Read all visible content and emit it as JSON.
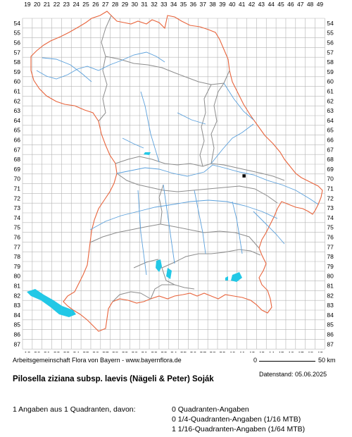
{
  "map": {
    "x_labels": [
      "19",
      "20",
      "21",
      "22",
      "23",
      "24",
      "25",
      "26",
      "27",
      "28",
      "29",
      "30",
      "31",
      "32",
      "33",
      "34",
      "35",
      "36",
      "37",
      "38",
      "39",
      "40",
      "41",
      "42",
      "43",
      "44",
      "45",
      "46",
      "47",
      "48",
      "49"
    ],
    "y_labels": [
      "54",
      "55",
      "56",
      "57",
      "58",
      "59",
      "60",
      "61",
      "62",
      "63",
      "64",
      "65",
      "66",
      "67",
      "68",
      "69",
      "70",
      "71",
      "72",
      "73",
      "74",
      "75",
      "76",
      "77",
      "78",
      "79",
      "80",
      "81",
      "82",
      "83",
      "84",
      "85",
      "86",
      "87"
    ],
    "colors": {
      "grid": "#b4b4b4",
      "border": "#e8643c",
      "district": "#8c8c8c",
      "river": "#5aa0dc",
      "lake": "#22c8e6",
      "record": "#000000"
    },
    "records": [
      {
        "col": "41",
        "row": "70",
        "quadrant_type": "1/16-Quadrant"
      }
    ]
  },
  "footer": {
    "credit": "Arbeitsgemeinschaft Flora von Bayern - www.bayernflora.de",
    "scale_start": "0",
    "scale_end": "50 km",
    "date": "Datenstand: 05.06.2025",
    "title": "Pilosella ziziana subsp. laevis (Nägeli & Peter) Soják",
    "summary": "1 Angaben aus 1 Quadranten, davon:",
    "stats": [
      "0 Quadranten-Angaben",
      "0 1/4-Quadranten-Angaben (1/16 MTB)",
      "1 1/16-Quadranten-Angaben (1/64 MTB)"
    ]
  }
}
